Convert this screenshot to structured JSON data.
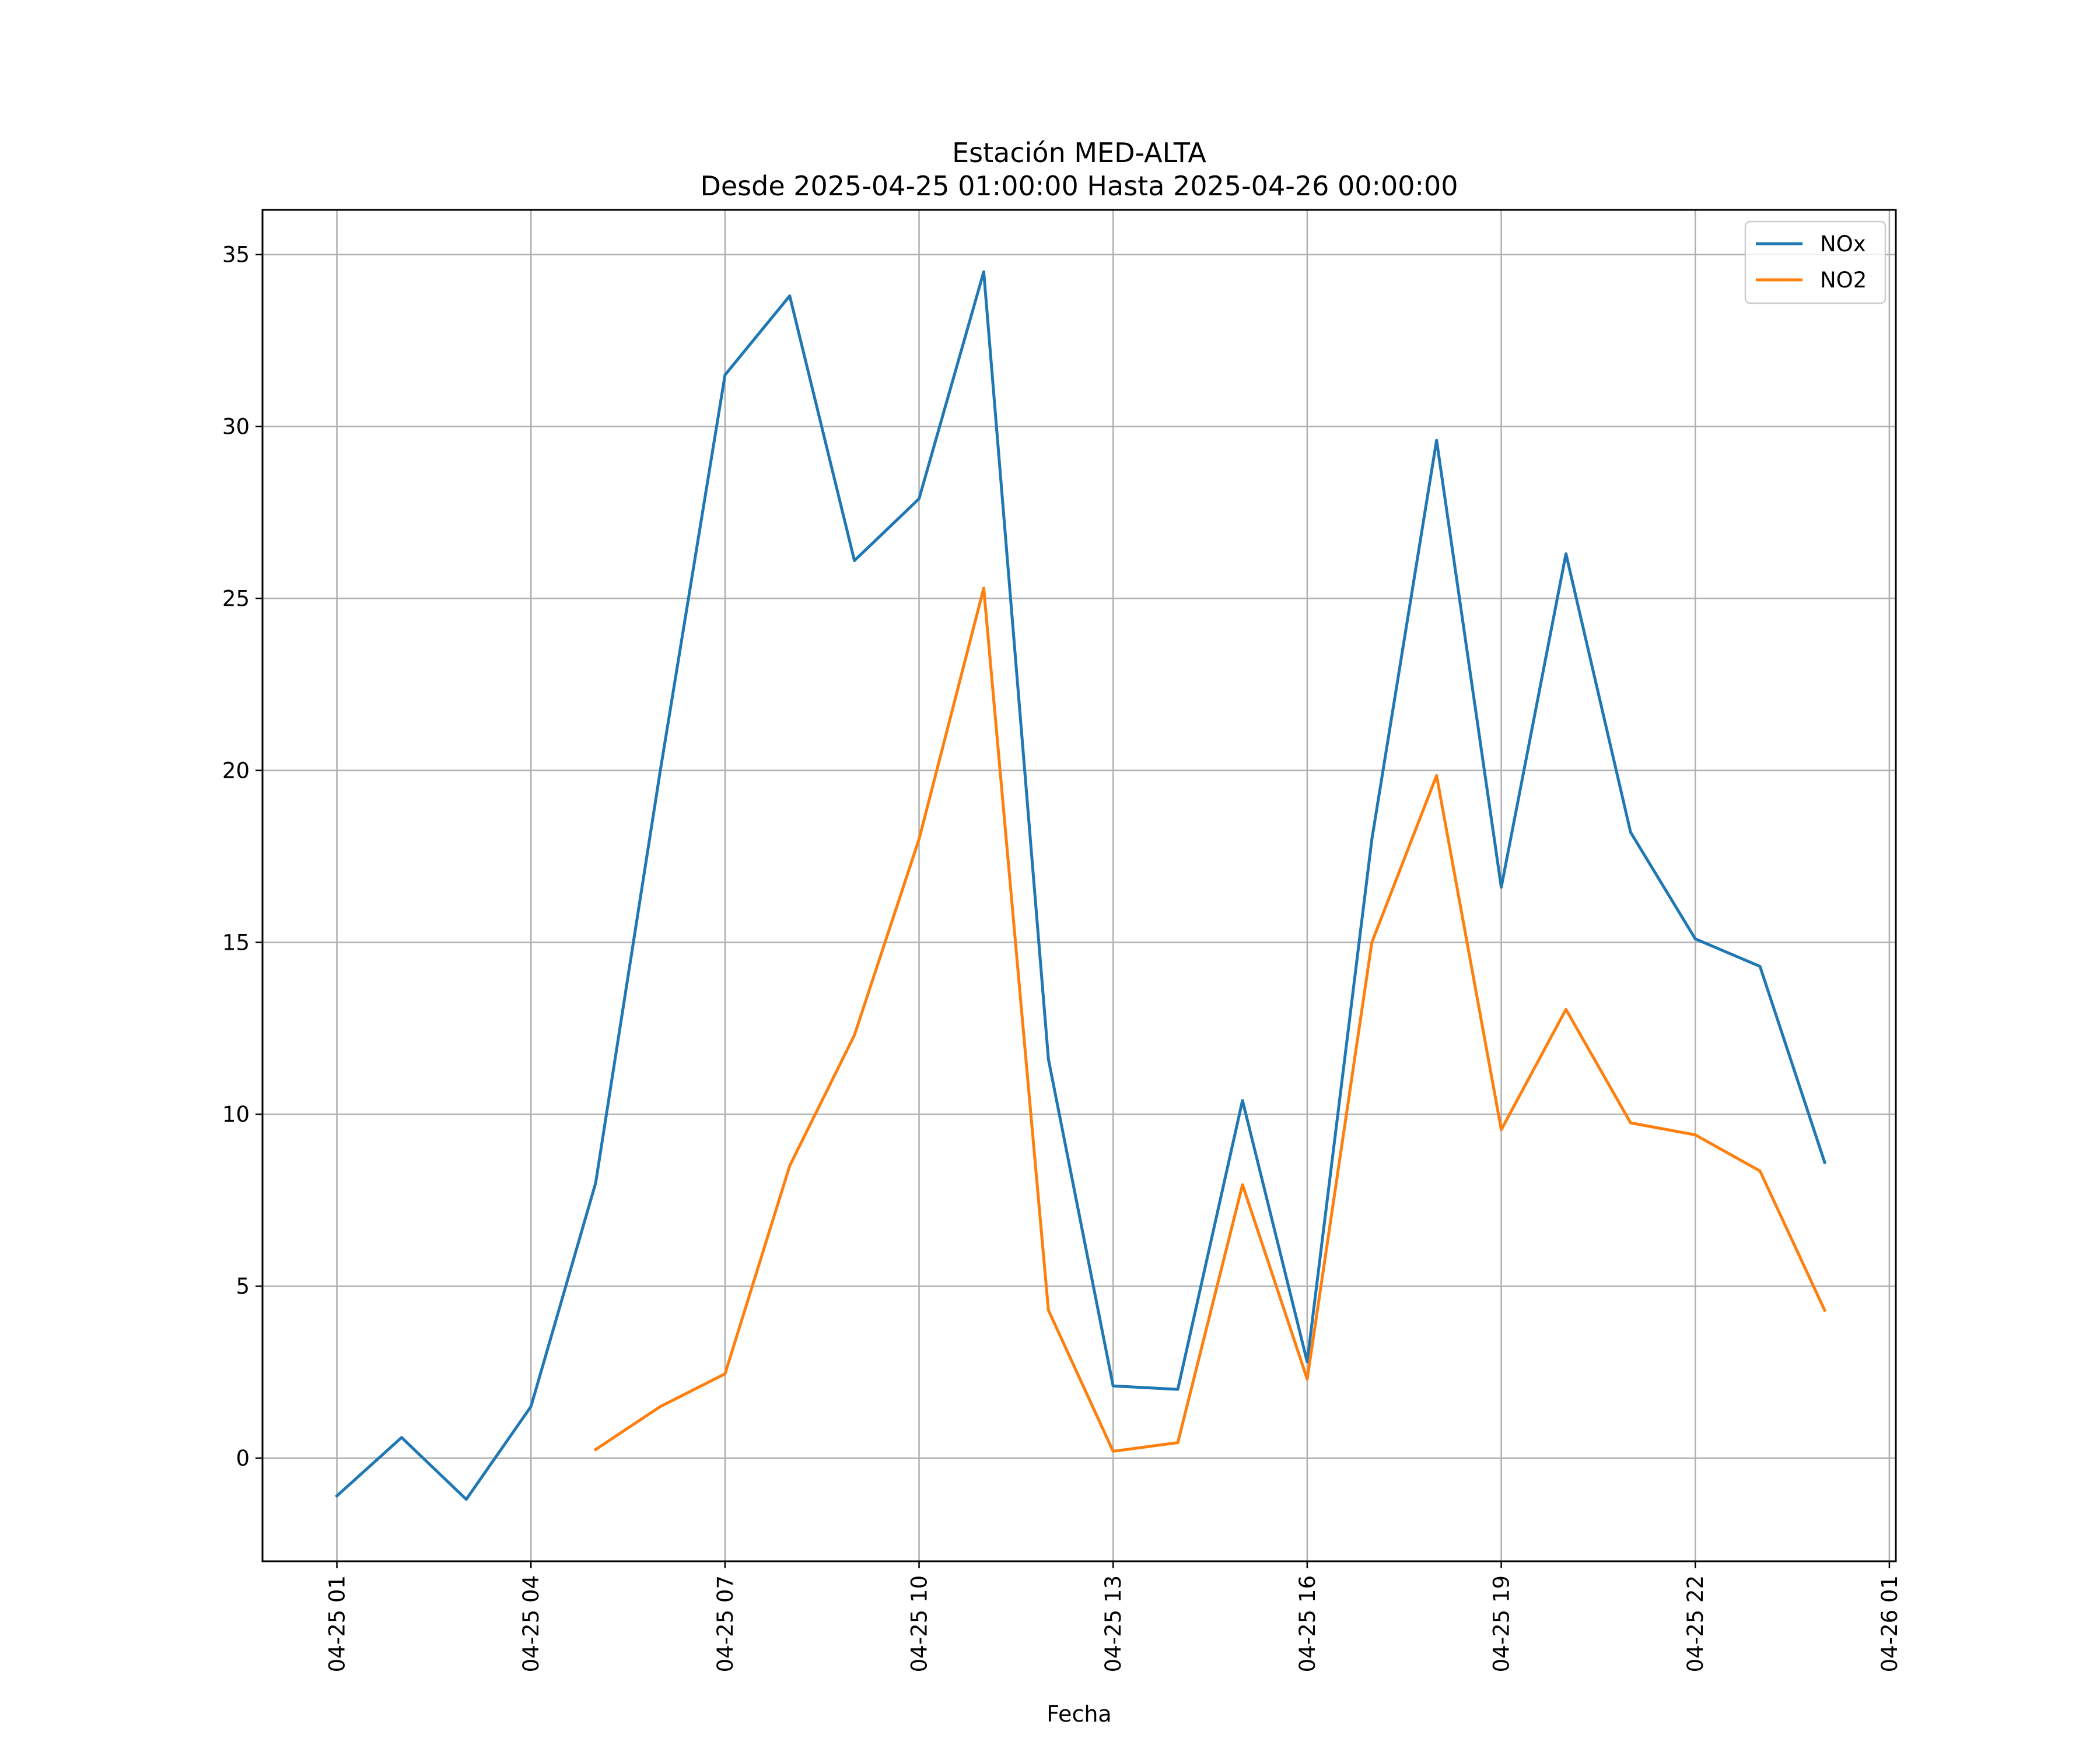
{
  "chart_data": {
    "type": "line",
    "title": "Estación MED-ALTA",
    "subtitle": "Desde 2025-04-25 01:00:00 Hasta 2025-04-26 00:00:00",
    "xlabel": "Fecha",
    "ylabel": "",
    "x": [
      "2025-04-25 01:00",
      "2025-04-25 02:00",
      "2025-04-25 03:00",
      "2025-04-25 04:00",
      "2025-04-25 05:00",
      "2025-04-25 06:00",
      "2025-04-25 07:00",
      "2025-04-25 08:00",
      "2025-04-25 09:00",
      "2025-04-25 10:00",
      "2025-04-25 11:00",
      "2025-04-25 12:00",
      "2025-04-25 13:00",
      "2025-04-25 14:00",
      "2025-04-25 15:00",
      "2025-04-25 16:00",
      "2025-04-25 17:00",
      "2025-04-25 18:00",
      "2025-04-25 19:00",
      "2025-04-25 20:00",
      "2025-04-25 21:00",
      "2025-04-25 22:00",
      "2025-04-25 23:00",
      "2025-04-26 00:00"
    ],
    "series": [
      {
        "name": "NOx",
        "color": "#1f77b4",
        "values": [
          -1.1,
          0.6,
          -1.2,
          1.5,
          8.0,
          20.0,
          31.5,
          33.8,
          26.1,
          27.9,
          34.5,
          11.6,
          2.1,
          2.0,
          10.4,
          2.8,
          18.0,
          29.6,
          16.6,
          26.3,
          18.2,
          15.1,
          14.3,
          8.6
        ]
      },
      {
        "name": "NO2",
        "color": "#ff7f0e",
        "values": [
          null,
          null,
          null,
          null,
          0.25,
          1.5,
          2.45,
          8.5,
          12.3,
          18.0,
          25.3,
          4.3,
          0.2,
          0.45,
          7.95,
          2.3,
          15.0,
          19.85,
          9.55,
          13.05,
          9.75,
          9.4,
          8.35,
          4.3
        ]
      }
    ],
    "x_ticks": [
      {
        "label": "04-25 01",
        "hour": 0
      },
      {
        "label": "04-25 04",
        "hour": 3
      },
      {
        "label": "04-25 07",
        "hour": 6
      },
      {
        "label": "04-25 10",
        "hour": 9
      },
      {
        "label": "04-25 13",
        "hour": 12
      },
      {
        "label": "04-25 16",
        "hour": 15
      },
      {
        "label": "04-25 19",
        "hour": 18
      },
      {
        "label": "04-25 22",
        "hour": 21
      },
      {
        "label": "04-26 01",
        "hour": 24
      }
    ],
    "y_ticks": [
      0,
      5,
      10,
      15,
      20,
      25,
      30,
      35
    ],
    "xlim_hours": [
      -1.15,
      24.1
    ],
    "ylim": [
      -3.0,
      36.3
    ],
    "grid": true,
    "legend_position": "top-right"
  }
}
